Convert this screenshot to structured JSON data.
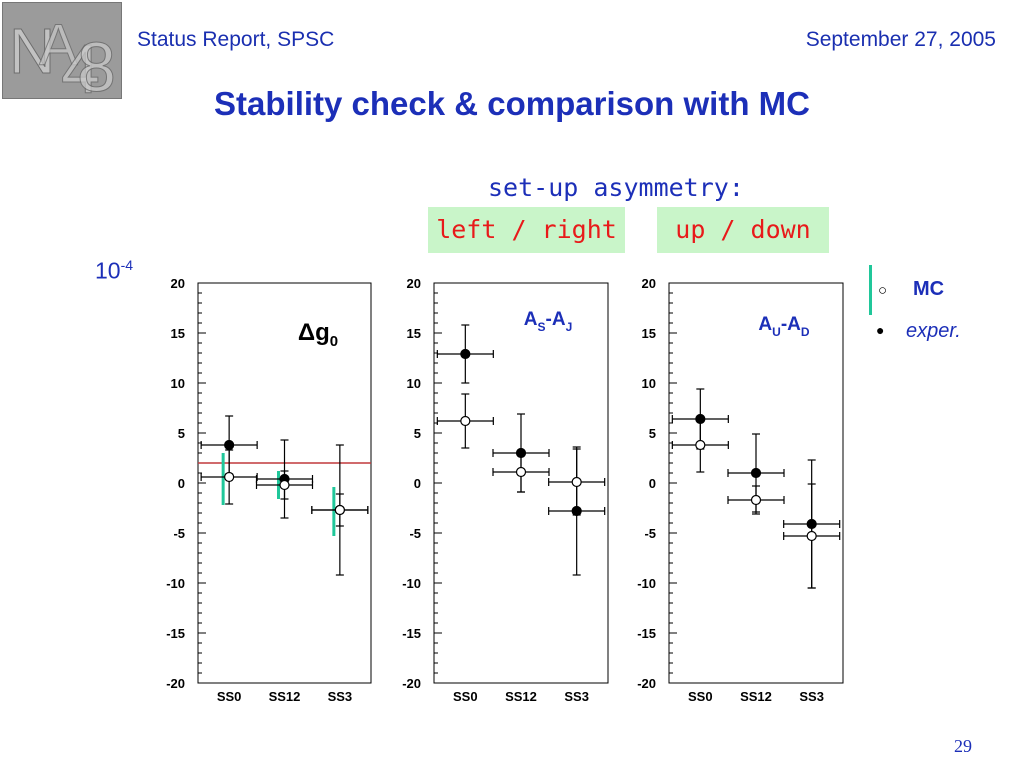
{
  "header": {
    "left": "Status Report, SPSC",
    "right": "September 27, 2005",
    "logo": "NA48"
  },
  "title": "Stability check & comparison with MC",
  "setup": {
    "heading": "set-up asymmetry:",
    "left_right": "left / right",
    "up_down": "up / down"
  },
  "unit": {
    "base": "10",
    "exp": "-4"
  },
  "legend": {
    "mc": "MC",
    "exper": "exper."
  },
  "page_number": "29",
  "colors": {
    "text_blue": "#1c2fb8",
    "label_red": "#e81a1a",
    "box_green": "#c9f5c9",
    "mc_bar": "#20c79a",
    "ref_line": "#c0393b"
  },
  "chart_data": [
    {
      "type": "scatter",
      "label": {
        "main": "Δg",
        "sub": "0",
        "sub2": ""
      },
      "categories": [
        "SS0",
        "SS12",
        "SS3"
      ],
      "ylim": [
        -20,
        20
      ],
      "yticks": [
        20,
        15,
        10,
        5,
        0,
        -5,
        -10,
        -15,
        -20
      ],
      "reference_line": 2,
      "series": [
        {
          "name": "exper.",
          "values": [
            3.8,
            0.4,
            -2.7
          ],
          "errors": [
            2.9,
            3.9,
            6.5
          ]
        },
        {
          "name": "MC",
          "values": [
            0.6,
            -0.2,
            -2.7
          ],
          "errors": [
            2.7,
            1.4,
            1.6
          ]
        }
      ],
      "mc_bars": [
        [
          -2.2,
          3.0
        ],
        [
          -1.6,
          1.2
        ],
        [
          -5.3,
          -0.4
        ]
      ]
    },
    {
      "type": "scatter",
      "label": {
        "main": "A",
        "sub": "S",
        "mid": "-A",
        "sub2": "J"
      },
      "categories": [
        "SS0",
        "SS12",
        "SS3"
      ],
      "ylim": [
        -20,
        20
      ],
      "yticks": [
        20,
        15,
        10,
        5,
        0,
        -5,
        -10,
        -15,
        -20
      ],
      "series": [
        {
          "name": "exper.",
          "values": [
            12.9,
            3.0,
            -2.8
          ],
          "errors": [
            2.9,
            3.9,
            6.4
          ]
        },
        {
          "name": "MC",
          "values": [
            6.2,
            1.1,
            0.1
          ],
          "errors": [
            2.7,
            2.0,
            3.3
          ]
        }
      ]
    },
    {
      "type": "scatter",
      "label": {
        "main": "A",
        "sub": "U",
        "mid": "-A",
        "sub2": "D"
      },
      "categories": [
        "SS0",
        "SS12",
        "SS3"
      ],
      "ylim": [
        -20,
        20
      ],
      "yticks": [
        20,
        15,
        10,
        5,
        0,
        -5,
        -10,
        -15,
        -20
      ],
      "series": [
        {
          "name": "exper.",
          "values": [
            6.4,
            1.0,
            -4.1
          ],
          "errors": [
            3.0,
            3.9,
            6.4
          ]
        },
        {
          "name": "MC",
          "values": [
            3.8,
            -1.7,
            -5.3
          ],
          "errors": [
            2.7,
            1.4,
            5.2
          ]
        }
      ]
    }
  ]
}
